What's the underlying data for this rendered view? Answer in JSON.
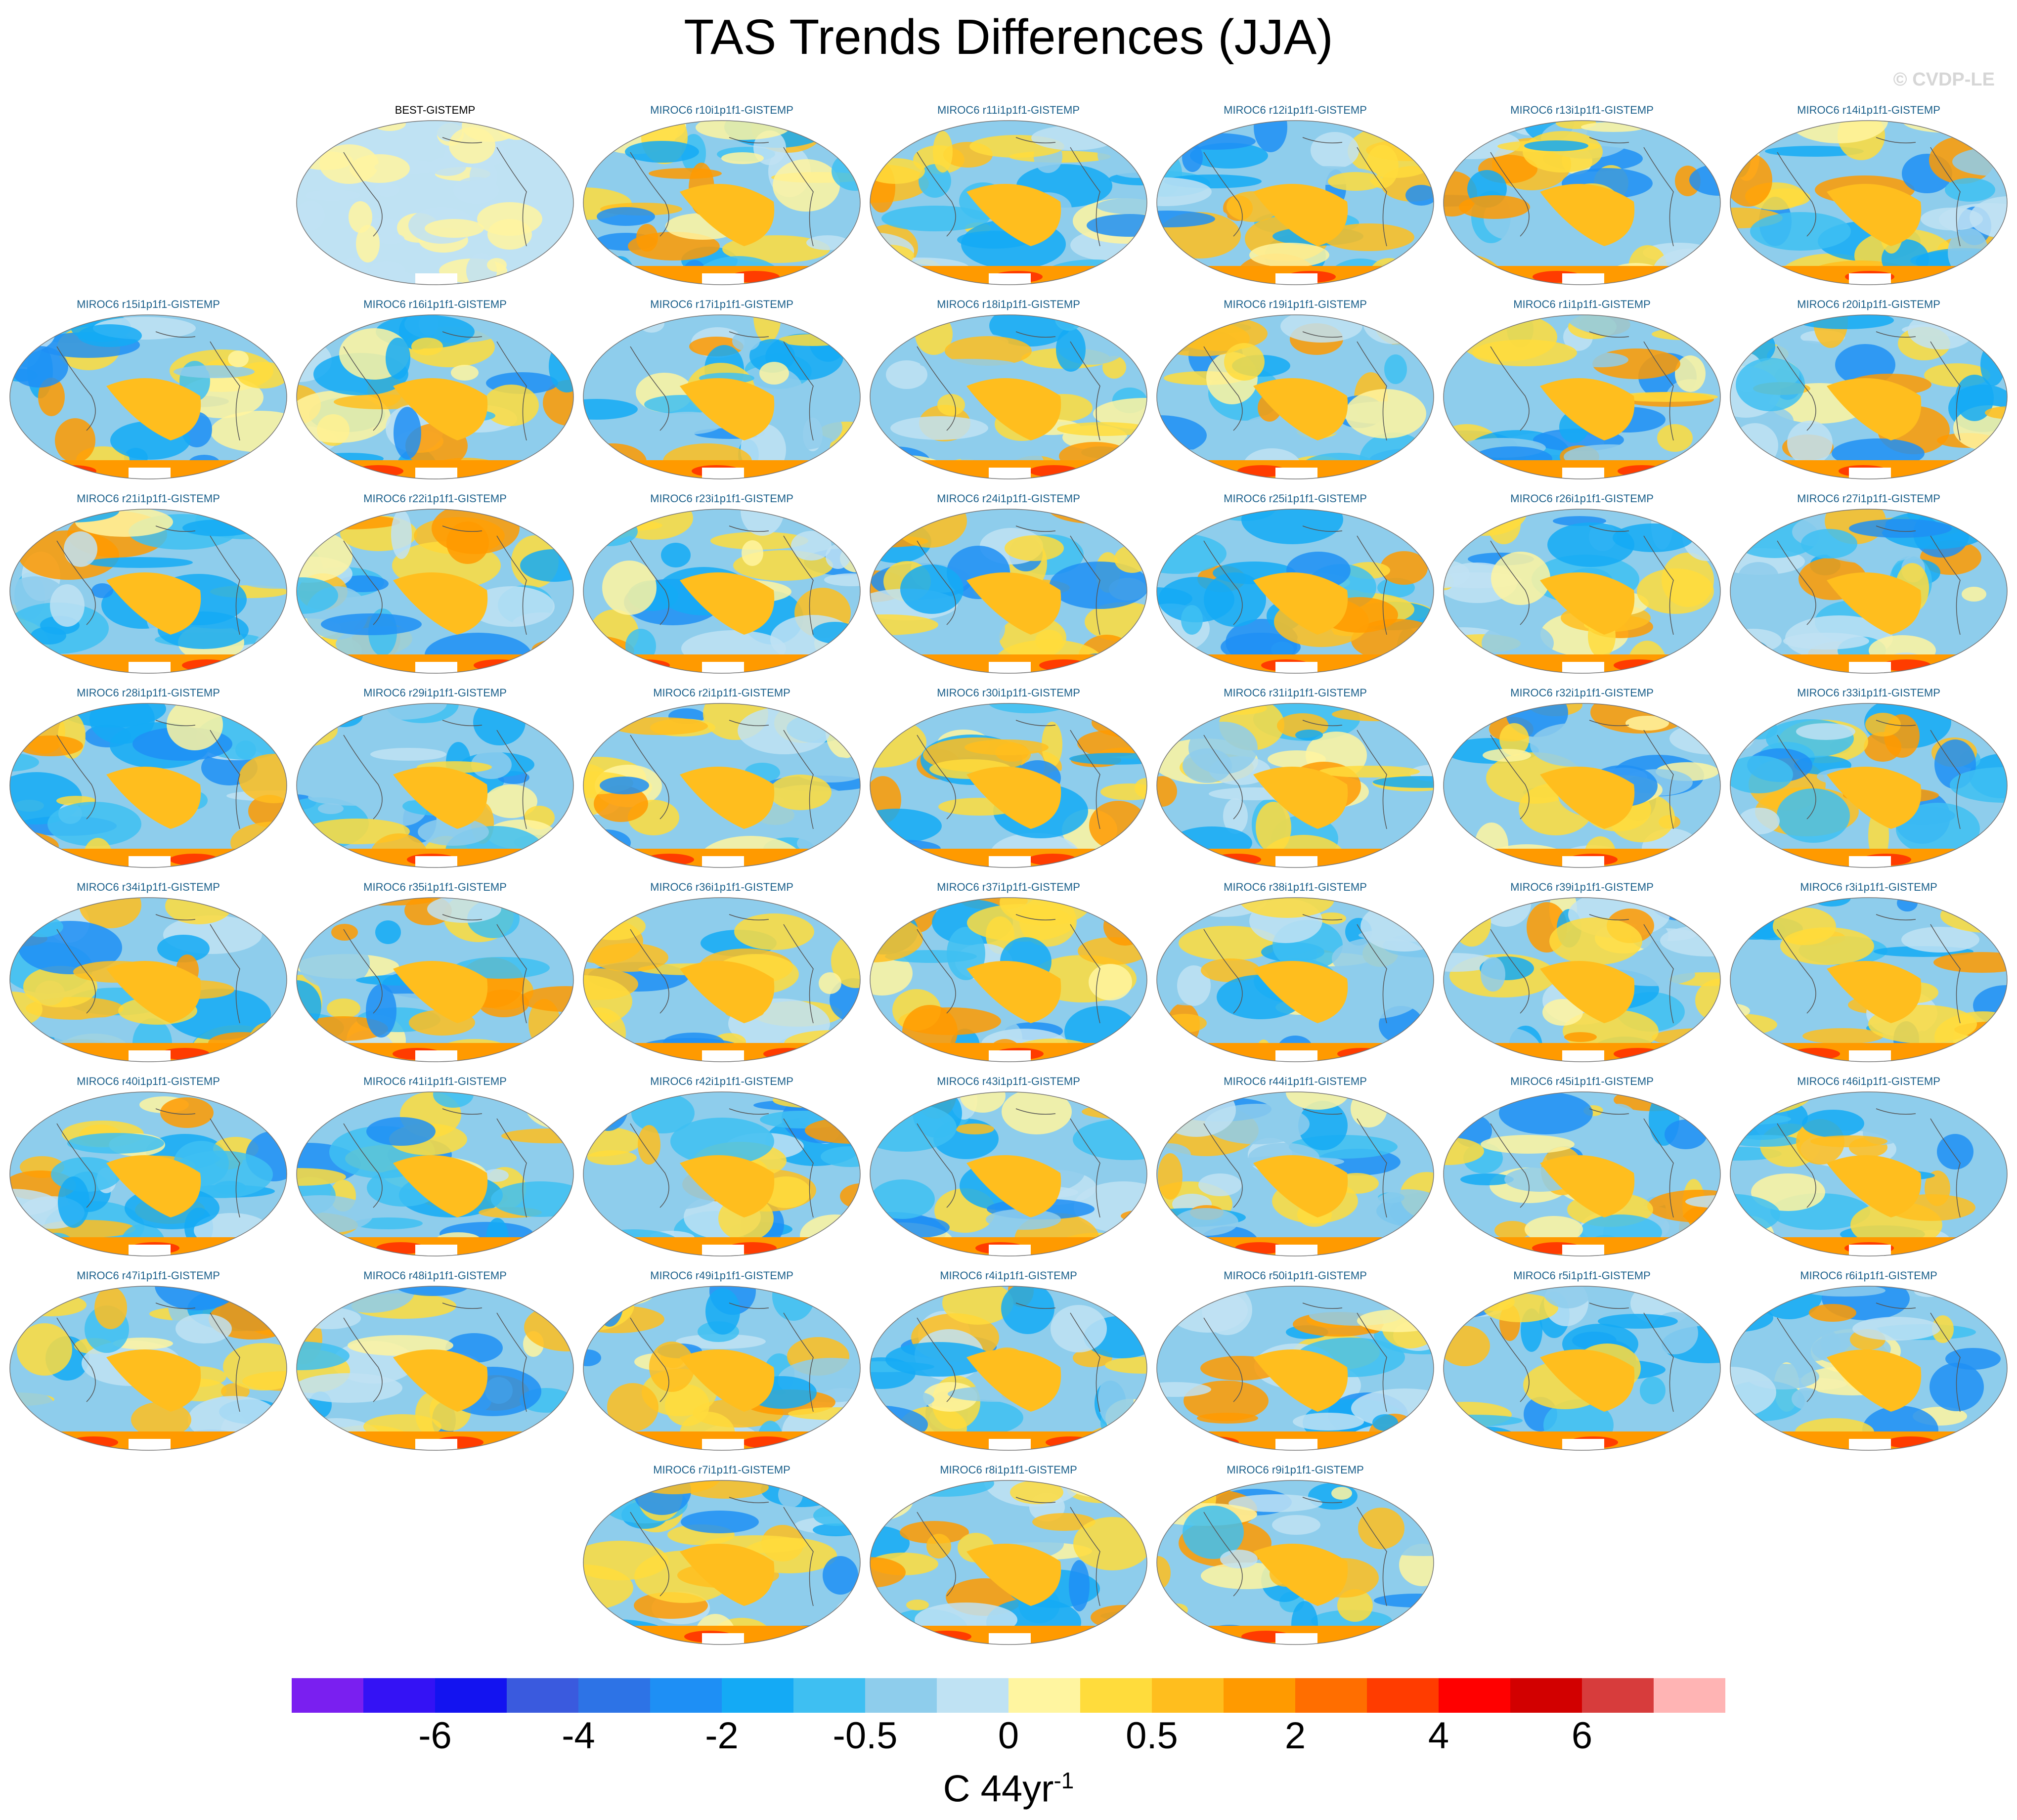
{
  "title": "TAS Trends Differences (JJA)",
  "watermark": "© CVDP-LE",
  "panels": [
    [
      null,
      "BEST-GISTEMP",
      "MIROC6 r10i1p1f1-GISTEMP",
      "MIROC6 r11i1p1f1-GISTEMP",
      "MIROC6 r12i1p1f1-GISTEMP",
      "MIROC6 r13i1p1f1-GISTEMP",
      "MIROC6 r14i1p1f1-GISTEMP"
    ],
    [
      "MIROC6 r15i1p1f1-GISTEMP",
      "MIROC6 r16i1p1f1-GISTEMP",
      "MIROC6 r17i1p1f1-GISTEMP",
      "MIROC6 r18i1p1f1-GISTEMP",
      "MIROC6 r19i1p1f1-GISTEMP",
      "MIROC6 r1i1p1f1-GISTEMP",
      "MIROC6 r20i1p1f1-GISTEMP"
    ],
    [
      "MIROC6 r21i1p1f1-GISTEMP",
      "MIROC6 r22i1p1f1-GISTEMP",
      "MIROC6 r23i1p1f1-GISTEMP",
      "MIROC6 r24i1p1f1-GISTEMP",
      "MIROC6 r25i1p1f1-GISTEMP",
      "MIROC6 r26i1p1f1-GISTEMP",
      "MIROC6 r27i1p1f1-GISTEMP"
    ],
    [
      "MIROC6 r28i1p1f1-GISTEMP",
      "MIROC6 r29i1p1f1-GISTEMP",
      "MIROC6 r2i1p1f1-GISTEMP",
      "MIROC6 r30i1p1f1-GISTEMP",
      "MIROC6 r31i1p1f1-GISTEMP",
      "MIROC6 r32i1p1f1-GISTEMP",
      "MIROC6 r33i1p1f1-GISTEMP"
    ],
    [
      "MIROC6 r34i1p1f1-GISTEMP",
      "MIROC6 r35i1p1f1-GISTEMP",
      "MIROC6 r36i1p1f1-GISTEMP",
      "MIROC6 r37i1p1f1-GISTEMP",
      "MIROC6 r38i1p1f1-GISTEMP",
      "MIROC6 r39i1p1f1-GISTEMP",
      "MIROC6 r3i1p1f1-GISTEMP"
    ],
    [
      "MIROC6 r40i1p1f1-GISTEMP",
      "MIROC6 r41i1p1f1-GISTEMP",
      "MIROC6 r42i1p1f1-GISTEMP",
      "MIROC6 r43i1p1f1-GISTEMP",
      "MIROC6 r44i1p1f1-GISTEMP",
      "MIROC6 r45i1p1f1-GISTEMP",
      "MIROC6 r46i1p1f1-GISTEMP"
    ],
    [
      "MIROC6 r47i1p1f1-GISTEMP",
      "MIROC6 r48i1p1f1-GISTEMP",
      "MIROC6 r49i1p1f1-GISTEMP",
      "MIROC6 r4i1p1f1-GISTEMP",
      "MIROC6 r50i1p1f1-GISTEMP",
      "MIROC6 r5i1p1f1-GISTEMP",
      "MIROC6 r6i1p1f1-GISTEMP"
    ],
    [
      null,
      null,
      "MIROC6 r7i1p1f1-GISTEMP",
      "MIROC6 r8i1p1f1-GISTEMP",
      "MIROC6 r9i1p1f1-GISTEMP",
      null,
      null
    ]
  ],
  "colorbar": {
    "colors": [
      "#7a1ff0",
      "#3412f5",
      "#1313f0",
      "#3a5ade",
      "#2d73e6",
      "#1e8ff5",
      "#14aaf5",
      "#3ebff2",
      "#8ecdec",
      "#bfe2f3",
      "#fff5a0",
      "#ffdc3c",
      "#ffbe1e",
      "#ff9a00",
      "#ff6e00",
      "#ff3c00",
      "#ff0000",
      "#d20000",
      "#d73c3c",
      "#ffb4b4"
    ],
    "tick_labels": [
      "-6",
      "-4",
      "-2",
      "-0.5",
      "0",
      "0.5",
      "2",
      "4",
      "6"
    ],
    "units": "C 44yr",
    "units_exponent": "-1"
  }
}
